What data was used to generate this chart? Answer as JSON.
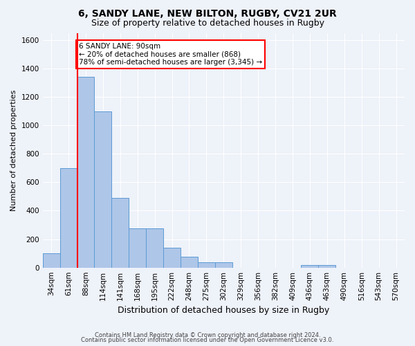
{
  "title1": "6, SANDY LANE, NEW BILTON, RUGBY, CV21 2UR",
  "title2": "Size of property relative to detached houses in Rugby",
  "xlabel": "Distribution of detached houses by size in Rugby",
  "ylabel": "Number of detached properties",
  "categories": [
    "34sqm",
    "61sqm",
    "88sqm",
    "114sqm",
    "141sqm",
    "168sqm",
    "195sqm",
    "222sqm",
    "248sqm",
    "275sqm",
    "302sqm",
    "329sqm",
    "356sqm",
    "382sqm",
    "409sqm",
    "436sqm",
    "463sqm",
    "490sqm",
    "516sqm",
    "543sqm",
    "570sqm"
  ],
  "values": [
    100,
    700,
    1340,
    1100,
    490,
    275,
    275,
    140,
    75,
    35,
    35,
    0,
    0,
    0,
    0,
    20,
    20,
    0,
    0,
    0,
    0
  ],
  "bar_color": "#aec6e8",
  "bar_edge_color": "#5b9bd5",
  "red_line_x": 2.0,
  "annotation_line1": "6 SANDY LANE: 90sqm",
  "annotation_line2": "← 20% of detached houses are smaller (868)",
  "annotation_line3": "78% of semi-detached houses are larger (3,345) →",
  "annotation_box_color": "white",
  "annotation_box_edge_color": "red",
  "ylim": [
    0,
    1650
  ],
  "yticks": [
    0,
    200,
    400,
    600,
    800,
    1000,
    1200,
    1400,
    1600
  ],
  "footer_line1": "Contains HM Land Registry data © Crown copyright and database right 2024.",
  "footer_line2": "Contains public sector information licensed under the Open Government Licence v3.0.",
  "bg_color": "#eef2f9",
  "plot_bg_color": "#eef2f9",
  "grid_color": "#ffffff",
  "title1_fontsize": 10,
  "title2_fontsize": 9,
  "ylabel_fontsize": 8,
  "xlabel_fontsize": 9,
  "tick_fontsize": 7.5,
  "footer_fontsize": 6,
  "annotation_fontsize": 7.5
}
